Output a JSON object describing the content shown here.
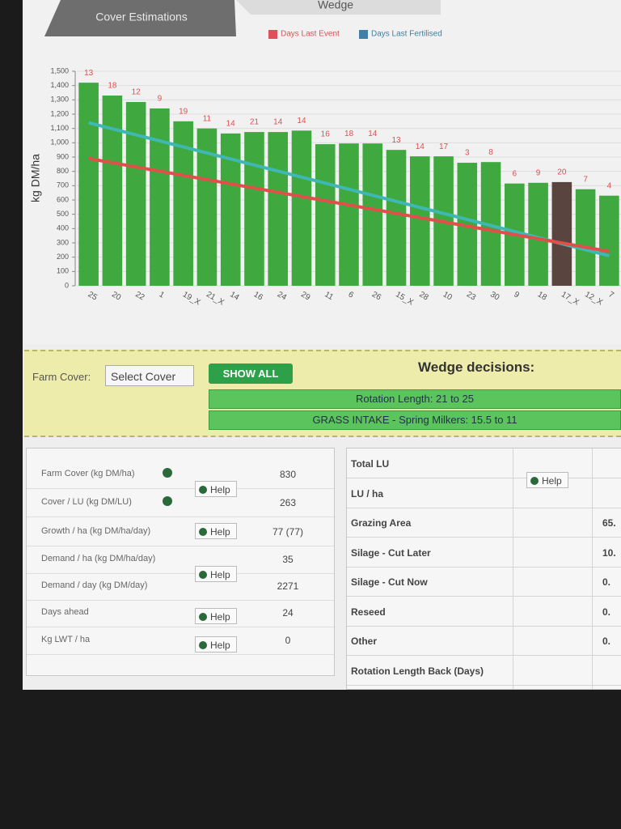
{
  "tabs": [
    "Cover Estimations",
    "Wedge"
  ],
  "chart_data": {
    "type": "bar",
    "y_label": "kg DM/ha",
    "legend": [
      {
        "label": "Days Last Event",
        "color": "#e0505a"
      },
      {
        "label": "Days Last Fertilised",
        "color": "#3f7fa8"
      }
    ],
    "categories": [
      "25",
      "20",
      "22",
      "1",
      "19_X",
      "21_X",
      "14",
      "16",
      "24",
      "29",
      "11",
      "6",
      "26",
      "15_X",
      "28",
      "10",
      "23",
      "30",
      "9",
      "18",
      "17_X",
      "12_X",
      "7"
    ],
    "values": [
      1420,
      1330,
      1285,
      1240,
      1150,
      1100,
      1065,
      1075,
      1075,
      1085,
      990,
      995,
      995,
      950,
      905,
      905,
      860,
      865,
      715,
      720,
      725,
      675,
      630
    ],
    "days_labels": [
      13,
      18,
      12,
      9,
      19,
      11,
      14,
      21,
      14,
      14,
      16,
      18,
      14,
      13,
      14,
      17,
      3,
      8,
      6,
      9,
      20,
      7,
      4
    ],
    "bar_colors": [
      "#3fa83f",
      "#3fa83f",
      "#3fa83f",
      "#3fa83f",
      "#3fa83f",
      "#3fa83f",
      "#3fa83f",
      "#3fa83f",
      "#3fa83f",
      "#3fa83f",
      "#3fa83f",
      "#3fa83f",
      "#3fa83f",
      "#3fa83f",
      "#3fa83f",
      "#3fa83f",
      "#3fa83f",
      "#3fa83f",
      "#3fa83f",
      "#3fa83f",
      "#5a4440",
      "#3fa83f",
      "#3fa83f"
    ],
    "lines": [
      {
        "color": "#3fb8b4",
        "values": [
          1140,
          210
        ]
      },
      {
        "color": "#e0504a",
        "values": [
          890,
          240
        ]
      }
    ],
    "ylim": [
      0,
      1500
    ],
    "yticks": [
      0,
      100,
      200,
      300,
      400,
      500,
      600,
      700,
      800,
      900,
      {
        "value": 1000,
        "label": "1,000"
      },
      {
        "value": 1100,
        "label": "1,100"
      },
      {
        "value": 1200,
        "label": "1,200"
      },
      {
        "value": 1300,
        "label": "1,300"
      },
      {
        "value": 1400,
        "label": "1,400"
      },
      {
        "value": 1500,
        "label": "1,500"
      }
    ],
    "grid": true
  },
  "controls": {
    "farm_cover_label": "Farm Cover:",
    "select": "Select Cover",
    "button": "SHOW ALL",
    "decisions_title": "Wedge decisions:",
    "decisions": [
      "Rotation Length: 21 to 25",
      "GRASS INTAKE - Spring Milkers: 15.5 to 11"
    ]
  },
  "left_table": {
    "rows": [
      {
        "label": "Farm Cover (kg DM/ha)",
        "value": "830"
      },
      {
        "label": "Cover / LU (kg DM/LU)",
        "value": "263"
      },
      {
        "label": "Growth / ha (kg DM/ha/day)",
        "value": "77 (77)"
      },
      {
        "label": "Demand / ha (kg DM/ha/day)",
        "value": "35"
      },
      {
        "label": "Demand / day (kg DM/day)",
        "value": "2271"
      },
      {
        "label": "Days ahead",
        "value": "24"
      },
      {
        "label": "Kg LWT / ha",
        "value": "0"
      }
    ],
    "help": [
      "Help",
      "Help",
      "Help",
      "Help",
      "Help"
    ]
  },
  "right_table": {
    "rows": [
      {
        "label": "Total LU"
      },
      {
        "label": "LU / ha"
      },
      {
        "label": "Grazing Area",
        "value": "65."
      },
      {
        "label": "Silage - Cut Later",
        "value": "10."
      },
      {
        "label": "Silage - Cut Now",
        "value": "0."
      },
      {
        "label": "Reseed",
        "value": "0."
      },
      {
        "label": "Other",
        "value": "0."
      },
      {
        "label": "Rotation Length Back (Days)"
      }
    ],
    "help": "Help"
  }
}
